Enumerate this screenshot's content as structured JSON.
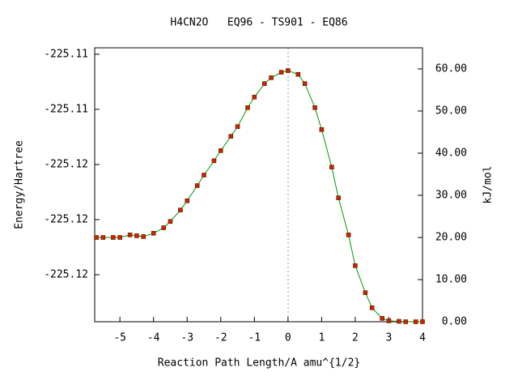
{
  "chart_data": {
    "type": "line",
    "title": "H4CN2O   EQ96 - TS901 - EQ86",
    "xlabel": "Reaction Path Length/A amu^{1/2}",
    "ylabel": "Energy/Hartree",
    "y2label": "kJ/mol",
    "x": [
      -5.7,
      -5.5,
      -5.2,
      -5.0,
      -4.7,
      -4.5,
      -4.3,
      -4.0,
      -3.7,
      -3.5,
      -3.2,
      -3.0,
      -2.7,
      -2.5,
      -2.2,
      -2.0,
      -1.7,
      -1.5,
      -1.2,
      -1.0,
      -0.7,
      -0.5,
      -0.2,
      0.0,
      0.3,
      0.5,
      0.8,
      1.0,
      1.3,
      1.5,
      1.8,
      2.0,
      2.3,
      2.5,
      2.8,
      3.0,
      3.3,
      3.5,
      3.8,
      4.0
    ],
    "series": [
      {
        "name": "kJ/mol",
        "color": "#009900",
        "marker_color": "#cc2200",
        "axis": "y2",
        "values": [
          20.0,
          20.0,
          20.0,
          20.0,
          20.6,
          20.4,
          20.2,
          21.0,
          22.3,
          23.8,
          26.5,
          28.7,
          32.3,
          34.8,
          38.2,
          40.6,
          44.0,
          46.3,
          50.8,
          53.3,
          56.5,
          57.9,
          59.2,
          59.6,
          58.7,
          56.5,
          50.8,
          45.6,
          36.7,
          29.4,
          20.6,
          13.3,
          6.9,
          3.3,
          0.8,
          0.2,
          0.1,
          0.0,
          0.0,
          0.0
        ]
      }
    ],
    "xlim": [
      -5.75,
      4
    ],
    "xticks": [
      -5,
      -4,
      -3,
      -2,
      -1,
      0,
      1,
      2,
      3,
      4
    ],
    "ylim": [
      -225.12556,
      -225.11065
    ],
    "yticks": [
      {
        "value": -225.111,
        "label": "-225.11"
      },
      {
        "value": -225.114,
        "label": "-225.11"
      },
      {
        "value": -225.117,
        "label": "-225.12"
      },
      {
        "value": -225.12,
        "label": "-225.12"
      },
      {
        "value": -225.123,
        "label": "-225.12"
      }
    ],
    "y2lim": [
      0,
      65
    ],
    "y2ticks": [
      {
        "value": 0,
        "label": "0.00"
      },
      {
        "value": 10,
        "label": "10.00"
      },
      {
        "value": 20,
        "label": "20.00"
      },
      {
        "value": 30,
        "label": "30.00"
      },
      {
        "value": 40,
        "label": "40.00"
      },
      {
        "value": 50,
        "label": "50.00"
      },
      {
        "value": 60,
        "label": "60.00"
      }
    ]
  }
}
